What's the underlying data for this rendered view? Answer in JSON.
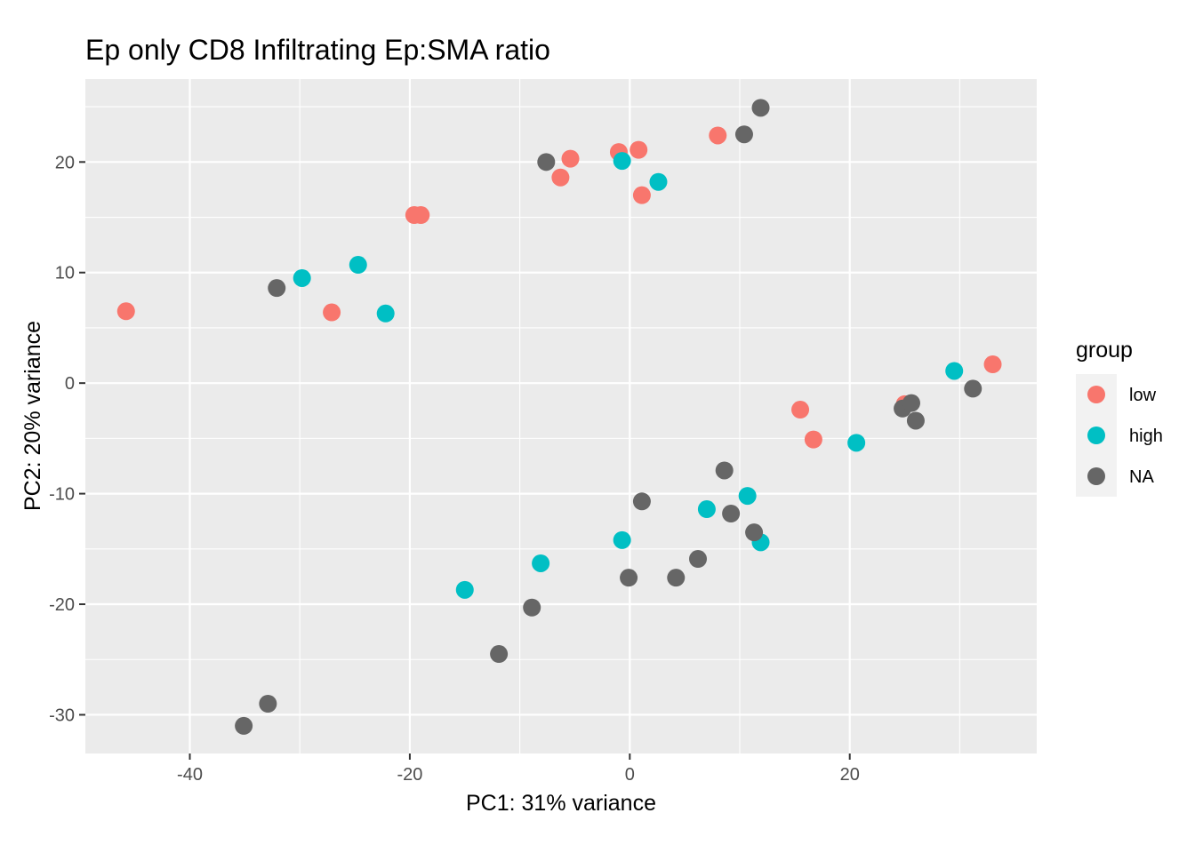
{
  "chart_data": {
    "type": "scatter",
    "title": "Ep only CD8 Infiltrating Ep:SMA ratio",
    "xlabel": "PC1: 31% variance",
    "ylabel": "PC2: 20% variance",
    "xlim": [
      -49.5,
      37
    ],
    "ylim": [
      -33.5,
      27.5
    ],
    "x_ticks": [
      -40,
      -20,
      0,
      20
    ],
    "x_tick_labels": [
      "-40",
      "-20",
      "0",
      "20"
    ],
    "y_ticks": [
      -30,
      -20,
      -10,
      0,
      10,
      20
    ],
    "y_tick_labels": [
      "-30",
      "-20",
      "-10",
      "0",
      "10",
      "20"
    ],
    "grid": true,
    "legend_position": "right",
    "legend_title": "group",
    "series": [
      {
        "name": "low",
        "color": "#F8766D",
        "points": [
          {
            "x": -45.8,
            "y": 6.5
          },
          {
            "x": -27.1,
            "y": 6.4
          },
          {
            "x": -19.6,
            "y": 15.2
          },
          {
            "x": -19.0,
            "y": 15.2
          },
          {
            "x": -6.3,
            "y": 18.6
          },
          {
            "x": -5.4,
            "y": 20.3
          },
          {
            "x": -1.0,
            "y": 20.9
          },
          {
            "x": 0.8,
            "y": 21.1
          },
          {
            "x": 1.1,
            "y": 17.0
          },
          {
            "x": 8.0,
            "y": 22.4
          },
          {
            "x": 15.5,
            "y": -2.4
          },
          {
            "x": 16.7,
            "y": -5.1
          },
          {
            "x": 25.0,
            "y": -1.9
          },
          {
            "x": 33.0,
            "y": 1.7
          }
        ]
      },
      {
        "name": "high",
        "color": "#00BFC4",
        "points": [
          {
            "x": -29.8,
            "y": 9.5
          },
          {
            "x": -24.7,
            "y": 10.7
          },
          {
            "x": -22.2,
            "y": 6.3
          },
          {
            "x": -15.0,
            "y": -18.7
          },
          {
            "x": -8.1,
            "y": -16.3
          },
          {
            "x": -0.7,
            "y": 20.1
          },
          {
            "x": -0.7,
            "y": -14.2
          },
          {
            "x": 2.6,
            "y": 18.2
          },
          {
            "x": 7.0,
            "y": -11.4
          },
          {
            "x": 10.7,
            "y": -10.2
          },
          {
            "x": 11.9,
            "y": -14.4
          },
          {
            "x": 20.6,
            "y": -5.4
          },
          {
            "x": 29.5,
            "y": 1.1
          }
        ]
      },
      {
        "name": "NA",
        "color": "#666666",
        "points": [
          {
            "x": -35.1,
            "y": -31.0
          },
          {
            "x": -32.9,
            "y": -29.0
          },
          {
            "x": -32.1,
            "y": 8.6
          },
          {
            "x": -11.9,
            "y": -24.5
          },
          {
            "x": -8.9,
            "y": -20.3
          },
          {
            "x": -7.6,
            "y": 20.0
          },
          {
            "x": -0.1,
            "y": -17.6
          },
          {
            "x": 1.1,
            "y": -10.7
          },
          {
            "x": 4.2,
            "y": -17.6
          },
          {
            "x": 6.2,
            "y": -15.9
          },
          {
            "x": 8.6,
            "y": -7.9
          },
          {
            "x": 9.2,
            "y": -11.8
          },
          {
            "x": 10.4,
            "y": 22.5
          },
          {
            "x": 11.3,
            "y": -13.5
          },
          {
            "x": 11.9,
            "y": 24.9
          },
          {
            "x": 24.8,
            "y": -2.3
          },
          {
            "x": 25.6,
            "y": -1.8
          },
          {
            "x": 26.0,
            "y": -3.4
          },
          {
            "x": 31.2,
            "y": -0.5
          }
        ]
      }
    ]
  }
}
